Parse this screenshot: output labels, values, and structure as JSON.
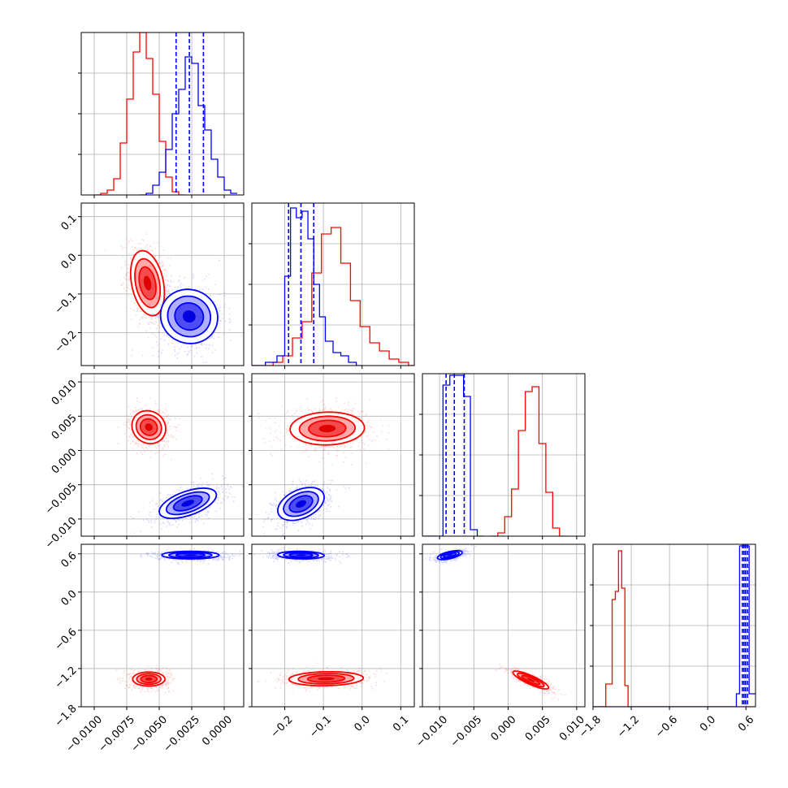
{
  "chart_data": {
    "type": "corner",
    "title": "",
    "grid": true,
    "series": [
      {
        "color": "#ff0000"
      },
      {
        "color": "#0000ff"
      }
    ],
    "params": [
      {
        "range": [
          -0.011,
          0.0015
        ],
        "ticks": [
          -0.01,
          -0.0075,
          -0.005,
          -0.0025,
          0.0
        ],
        "tick_labels": [
          "−0.0100",
          "−0.0075",
          "−0.0050",
          "−0.0025",
          "0.0000"
        ]
      },
      {
        "range": [
          -0.285,
          0.135
        ],
        "ticks": [
          -0.2,
          -0.1,
          0.0,
          0.1
        ],
        "tick_labels": [
          "−0.2",
          "−0.1",
          "0.0",
          "0.1"
        ]
      },
      {
        "range": [
          -0.0125,
          0.0112
        ],
        "ticks": [
          -0.01,
          -0.005,
          0.0,
          0.005,
          0.01
        ],
        "tick_labels": [
          "−0.010",
          "−0.005",
          "0.000",
          "0.005",
          "0.010"
        ]
      },
      {
        "range": [
          -1.8,
          0.75
        ],
        "ticks": [
          -1.8,
          -1.2,
          -0.6,
          0.0,
          0.6
        ],
        "tick_labels": [
          "−1.8",
          "−1.2",
          "−0.6",
          "0.0",
          "0.6"
        ]
      }
    ],
    "diagonal": [
      {
        "hist_ylim": [
          0,
          1.0
        ],
        "red": {
          "edges": [
            -0.01,
            -0.0095,
            -0.009,
            -0.0085,
            -0.008,
            -0.0075,
            -0.007,
            -0.0065,
            -0.006,
            -0.0055,
            -0.005,
            -0.0045,
            -0.004,
            -0.0035,
            -0.003
          ],
          "counts": [
            0.0,
            0.01,
            0.03,
            0.1,
            0.32,
            0.59,
            0.88,
            1.0,
            0.84,
            0.62,
            0.33,
            0.11,
            0.02,
            0.0
          ]
        },
        "blue": {
          "edges": [
            -0.0065,
            -0.006,
            -0.0055,
            -0.005,
            -0.0045,
            -0.004,
            -0.0035,
            -0.003,
            -0.0025,
            -0.002,
            -0.0015,
            -0.001,
            -0.0005,
            0.0,
            0.0005,
            0.001
          ],
          "counts": [
            0.0,
            0.01,
            0.06,
            0.14,
            0.28,
            0.5,
            0.65,
            0.85,
            0.81,
            0.55,
            0.4,
            0.22,
            0.11,
            0.03,
            0.01
          ]
        },
        "quantiles": [
          -0.0037,
          -0.00268,
          -0.0016
        ]
      },
      {
        "hist_ylim": [
          0,
          1.0
        ],
        "red": {
          "edges": [
            -0.285,
            -0.255,
            -0.23,
            -0.205,
            -0.18,
            -0.155,
            -0.13,
            -0.105,
            -0.08,
            -0.055,
            -0.03,
            -0.005,
            0.02,
            0.045,
            0.07,
            0.095,
            0.12,
            0.135
          ],
          "counts": [
            0.0,
            0.0,
            0.02,
            0.06,
            0.17,
            0.27,
            0.57,
            0.81,
            0.85,
            0.63,
            0.4,
            0.24,
            0.14,
            0.09,
            0.04,
            0.02,
            0.0
          ]
        },
        "blue": {
          "edges": [
            -0.285,
            -0.25,
            -0.22,
            -0.2,
            -0.185,
            -0.17,
            -0.155,
            -0.14,
            -0.125,
            -0.11,
            -0.095,
            -0.075,
            -0.055,
            -0.035,
            -0.015,
            0.0
          ],
          "counts": [
            0.0,
            0.02,
            0.06,
            0.55,
            0.97,
            0.91,
            0.95,
            0.78,
            0.5,
            0.3,
            0.15,
            0.08,
            0.06,
            0.02,
            0.0
          ]
        },
        "quantiles": [
          -0.19,
          -0.158,
          -0.125
        ]
      },
      {
        "hist_ylim": [
          0,
          1.0
        ],
        "red": {
          "edges": [
            -0.0025,
            -0.0015,
            -0.0005,
            0.0005,
            0.0015,
            0.0025,
            0.0035,
            0.0045,
            0.0055,
            0.0065,
            0.0075,
            0.0085
          ],
          "counts": [
            0.0,
            0.02,
            0.12,
            0.29,
            0.65,
            0.89,
            0.92,
            0.57,
            0.27,
            0.05,
            0.0
          ]
        },
        "blue": {
          "edges": [
            -0.0125,
            -0.0095,
            -0.0085,
            -0.0075,
            -0.0065,
            -0.0055,
            -0.0045,
            -0.0035
          ],
          "counts": [
            0.0,
            0.93,
            0.99,
            0.99,
            0.86,
            0.04,
            0.0
          ]
        },
        "quantiles": [
          -0.00905,
          -0.00785,
          -0.0064
        ]
      },
      {
        "hist_ylim": [
          0,
          1.0
        ],
        "red": {
          "edges": [
            -1.8,
            -1.6,
            -1.5,
            -1.45,
            -1.4,
            -1.35,
            -1.3,
            -1.25,
            -1.2,
            0.75
          ],
          "counts": [
            0.0,
            0.14,
            0.66,
            0.71,
            0.96,
            0.73,
            0.13,
            0.0,
            0.0
          ]
        },
        "blue": {
          "edges": [
            -1.8,
            0.45,
            0.5,
            0.55,
            0.6,
            0.65,
            0.75
          ],
          "counts": [
            0.0,
            0.08,
            0.99,
            0.99,
            0.99,
            0.08
          ]
        },
        "quantiles": [
          0.545,
          0.57,
          0.595,
          0.625
        ]
      }
    ],
    "pairs": [
      {
        "col": 0,
        "row": 1,
        "red": {
          "mean": [
            -0.0059,
            -0.072
          ],
          "sd": [
            0.00065,
            0.042
          ],
          "rho": -0.3
        },
        "blue": {
          "mean": [
            -0.0027,
            -0.158
          ],
          "sd": [
            0.0011,
            0.035
          ],
          "rho": -0.05
        }
      },
      {
        "col": 0,
        "row": 2,
        "red": {
          "mean": [
            -0.0058,
            0.0034
          ],
          "sd": [
            0.00065,
            0.0012
          ],
          "rho": -0.1
        },
        "blue": {
          "mean": [
            -0.0028,
            -0.0077
          ],
          "sd": [
            0.0011,
            0.0011
          ],
          "rho": 0.55
        }
      },
      {
        "col": 1,
        "row": 2,
        "red": {
          "mean": [
            -0.09,
            0.0032
          ],
          "sd": [
            0.048,
            0.0012
          ],
          "rho": 0.05
        },
        "blue": {
          "mean": [
            -0.158,
            -0.0078
          ],
          "sd": [
            0.03,
            0.0012
          ],
          "rho": 0.4
        }
      },
      {
        "col": 0,
        "row": 3,
        "red": {
          "mean": [
            -0.0058,
            -1.365
          ],
          "sd": [
            0.00062,
            0.055
          ],
          "rho": 0.0
        },
        "blue": {
          "mean": [
            -0.0026,
            0.58
          ],
          "sd": [
            0.0011,
            0.03
          ],
          "rho": 0.0
        }
      },
      {
        "col": 1,
        "row": 3,
        "red": {
          "mean": [
            -0.093,
            -1.36
          ],
          "sd": [
            0.048,
            0.055
          ],
          "rho": 0.1
        },
        "blue": {
          "mean": [
            -0.158,
            0.58
          ],
          "sd": [
            0.03,
            0.03
          ],
          "rho": -0.1
        }
      },
      {
        "col": 2,
        "row": 3,
        "red": {
          "mean": [
            0.0033,
            -1.38
          ],
          "sd": [
            0.0013,
            0.07
          ],
          "rho": -0.85
        },
        "blue": {
          "mean": [
            -0.0085,
            0.58
          ],
          "sd": [
            0.0009,
            0.035
          ],
          "rho": 0.6
        }
      }
    ]
  }
}
